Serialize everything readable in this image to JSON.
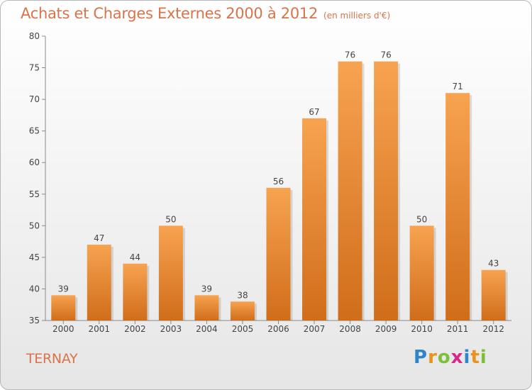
{
  "title": "Achats et Charges Externes 2000 à 2012",
  "subtitle": "(en milliers d'€)",
  "town": "TERNAY",
  "logo": {
    "text": "Proxiti",
    "letters": [
      "P",
      "r",
      "o",
      "x",
      "i",
      "t",
      "i"
    ]
  },
  "colors": {
    "bar_light": "#f7a350",
    "bar_dark": "#d06d1a",
    "title": "#d8744a"
  },
  "chart_data": {
    "type": "bar",
    "categories": [
      "2000",
      "2001",
      "2002",
      "2003",
      "2004",
      "2005",
      "2006",
      "2007",
      "2008",
      "2009",
      "2010",
      "2011",
      "2012"
    ],
    "values": [
      39,
      47,
      44,
      50,
      39,
      38,
      56,
      67,
      76,
      76,
      50,
      71,
      43
    ],
    "ylim": [
      35,
      80
    ],
    "yticks": [
      35,
      40,
      45,
      50,
      55,
      60,
      65,
      70,
      75,
      80
    ],
    "grid": false,
    "data_labels": true
  }
}
